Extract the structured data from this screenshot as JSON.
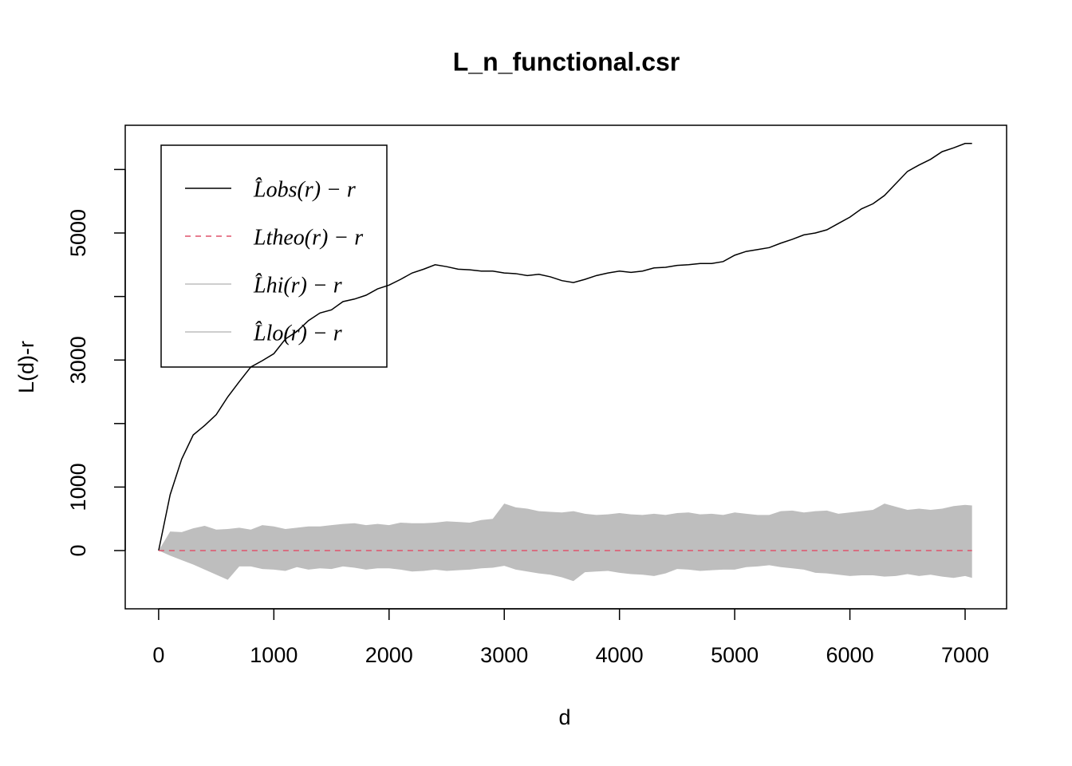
{
  "chart_data": {
    "type": "line",
    "title": "L_n_functional.csr",
    "xlabel": "d",
    "ylabel": "L(d)-r",
    "x": [
      0,
      100,
      200,
      300,
      400,
      500,
      600,
      700,
      800,
      900,
      1000,
      1100,
      1200,
      1300,
      1400,
      1500,
      1600,
      1700,
      1800,
      1900,
      2000,
      2100,
      2200,
      2300,
      2400,
      2500,
      2600,
      2700,
      2800,
      2900,
      3000,
      3100,
      3200,
      3300,
      3400,
      3500,
      3600,
      3700,
      3800,
      3900,
      4000,
      4100,
      4200,
      4300,
      4400,
      4500,
      4600,
      4700,
      4800,
      4900,
      5000,
      5100,
      5200,
      5300,
      5400,
      5500,
      5600,
      5700,
      5800,
      5900,
      6000,
      6100,
      6200,
      6300,
      6400,
      6500,
      6600,
      6700,
      6800,
      6900,
      7000,
      7060
    ],
    "series": [
      {
        "name": "L̂obs(r) − r",
        "color": "#000000",
        "linestyle": "solid",
        "values": [
          0,
          880,
          1440,
          1820,
          1970,
          2140,
          2420,
          2660,
          2890,
          2990,
          3100,
          3330,
          3450,
          3620,
          3740,
          3790,
          3920,
          3960,
          4020,
          4120,
          4180,
          4270,
          4370,
          4430,
          4500,
          4470,
          4430,
          4420,
          4400,
          4400,
          4370,
          4360,
          4330,
          4350,
          4310,
          4250,
          4220,
          4270,
          4330,
          4370,
          4400,
          4380,
          4400,
          4450,
          4460,
          4490,
          4500,
          4520,
          4520,
          4550,
          4650,
          4710,
          4740,
          4770,
          4840,
          4900,
          4970,
          5000,
          5050,
          5150,
          5250,
          5380,
          5460,
          5590,
          5780,
          5970,
          6070,
          6160,
          6280,
          6340,
          6410,
          6410
        ]
      },
      {
        "name": "Ltheo(r) − r",
        "color": "#DF536B",
        "linestyle": "dashed",
        "values": [
          0,
          0,
          0,
          0,
          0,
          0,
          0,
          0,
          0,
          0,
          0,
          0,
          0,
          0,
          0,
          0,
          0,
          0,
          0,
          0,
          0,
          0,
          0,
          0,
          0,
          0,
          0,
          0,
          0,
          0,
          0,
          0,
          0,
          0,
          0,
          0,
          0,
          0,
          0,
          0,
          0,
          0,
          0,
          0,
          0,
          0,
          0,
          0,
          0,
          0,
          0,
          0,
          0,
          0,
          0,
          0,
          0,
          0,
          0,
          0,
          0,
          0,
          0,
          0,
          0,
          0,
          0,
          0,
          0,
          0,
          0,
          0
        ]
      },
      {
        "name": "L̂hi(r) − r",
        "color": "#BEBEBE",
        "linestyle": "band",
        "values": [
          0,
          300,
          290,
          350,
          390,
          330,
          340,
          360,
          330,
          400,
          380,
          340,
          360,
          380,
          380,
          400,
          420,
          430,
          400,
          420,
          400,
          440,
          430,
          430,
          440,
          460,
          450,
          440,
          480,
          500,
          740,
          680,
          660,
          620,
          610,
          600,
          620,
          580,
          560,
          570,
          590,
          570,
          560,
          580,
          560,
          590,
          600,
          570,
          580,
          560,
          600,
          580,
          560,
          560,
          620,
          630,
          600,
          620,
          630,
          580,
          600,
          620,
          640,
          740,
          690,
          640,
          660,
          640,
          660,
          700,
          720,
          710
        ]
      },
      {
        "name": "L̂lo(r) − r",
        "color": "#BEBEBE",
        "linestyle": "band",
        "values": [
          0,
          -80,
          -150,
          -220,
          -300,
          -380,
          -460,
          -250,
          -250,
          -290,
          -300,
          -320,
          -260,
          -300,
          -280,
          -290,
          -250,
          -270,
          -300,
          -280,
          -280,
          -300,
          -330,
          -320,
          -300,
          -320,
          -310,
          -300,
          -280,
          -270,
          -240,
          -300,
          -330,
          -360,
          -380,
          -420,
          -480,
          -340,
          -330,
          -320,
          -350,
          -370,
          -380,
          -400,
          -360,
          -290,
          -300,
          -320,
          -310,
          -300,
          -300,
          -260,
          -250,
          -230,
          -260,
          -280,
          -300,
          -350,
          -360,
          -380,
          -400,
          -390,
          -390,
          -410,
          -400,
          -370,
          -400,
          -380,
          -410,
          -430,
          -400,
          -430
        ]
      }
    ],
    "xlim": [
      -290,
      7360
    ],
    "ylim": [
      -917,
      6696
    ],
    "xticks": [
      0,
      1000,
      2000,
      3000,
      4000,
      5000,
      6000,
      7000
    ],
    "yticks": [
      0,
      1000,
      {
        "value": 2000,
        "label": null
      },
      3000,
      {
        "value": 4000,
        "label": null
      },
      5000,
      {
        "value": 6000,
        "label": null
      }
    ],
    "legend": "top-left",
    "grid": false
  }
}
